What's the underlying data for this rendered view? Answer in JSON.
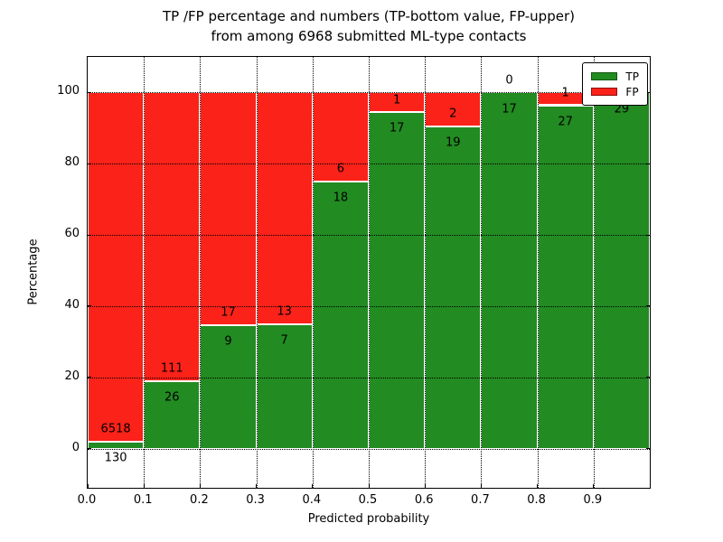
{
  "figure": {
    "title_lines": [
      "TP /FP percentage and numbers (TP-bottom value, FP-upper)",
      "from among 6968 submitted ML-type contacts"
    ]
  },
  "chart_data": {
    "type": "bar",
    "variant": "stacked-percentage",
    "title": "TP /FP percentage and numbers (TP-bottom value, FP-upper)\nfrom among 6968 submitted ML-type contacts",
    "xlabel": "Predicted probability",
    "ylabel": "Percentage",
    "x_tick_labels": [
      "0.0",
      "0.1",
      "0.2",
      "0.3",
      "0.4",
      "0.5",
      "0.6",
      "0.7",
      "0.8",
      "0.9"
    ],
    "y_tick_labels": [
      "0",
      "20",
      "40",
      "60",
      "80",
      "100"
    ],
    "y_tick_values": [
      0,
      20,
      40,
      60,
      80,
      100
    ],
    "xlim": [
      0.0,
      1.0
    ],
    "ylim": [
      -11,
      110
    ],
    "grid": "dotted-black-over-bars",
    "bin_width": 0.1,
    "bin_starts": [
      0.0,
      0.1,
      0.2,
      0.3,
      0.4,
      0.5,
      0.6,
      0.7,
      0.8,
      0.9
    ],
    "series": [
      {
        "name": "TP",
        "color": "#228b22",
        "counts": [
          130,
          26,
          9,
          7,
          18,
          17,
          19,
          17,
          27,
          29
        ]
      },
      {
        "name": "FP",
        "color": "#fa2219",
        "counts": [
          6518,
          111,
          17,
          13,
          6,
          1,
          2,
          0,
          1,
          0
        ]
      }
    ],
    "tp_percent": [
      1.96,
      18.98,
      34.62,
      35.0,
      75.0,
      94.44,
      90.48,
      100.0,
      96.43,
      100.0
    ],
    "total_contacts": "6968",
    "legend": {
      "position": "upper-right",
      "entries": [
        {
          "label": "TP",
          "color": "#228b22"
        },
        {
          "label": "FP",
          "color": "#fa2219"
        }
      ]
    }
  },
  "colors": {
    "tp_green": "#228b22",
    "fp_red": "#fa2219",
    "grid": "#000000",
    "background": "#ffffff",
    "text": "#000000"
  }
}
